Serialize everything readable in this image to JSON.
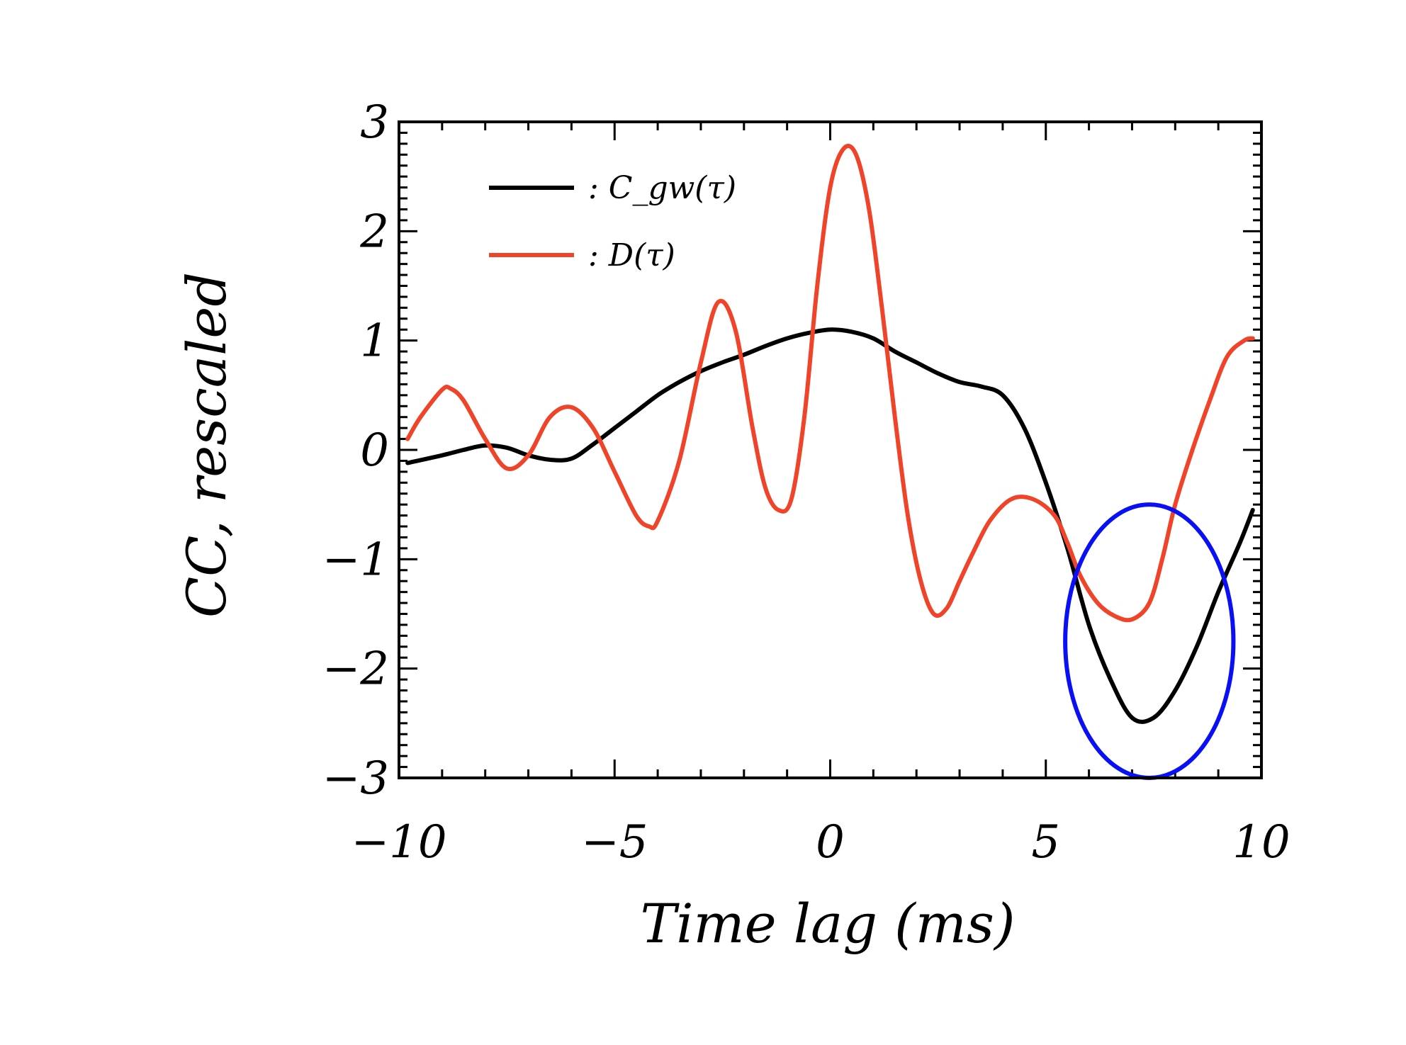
{
  "chart_data": {
    "type": "line",
    "xlabel": "Time lag (ms)",
    "ylabel": "CC, rescaled",
    "xlim": [
      -10,
      10
    ],
    "ylim": [
      -3,
      3
    ],
    "xticks": [
      -10,
      -5,
      0,
      5,
      10
    ],
    "yticks": [
      -3,
      -2,
      -1,
      0,
      1,
      2,
      3
    ],
    "xtick_labels": [
      "−10",
      "−5",
      "0",
      "5",
      "10"
    ],
    "ytick_labels": [
      "−3",
      "−2",
      "−1",
      "0",
      "1",
      "2",
      "3"
    ],
    "legend_placement": "top-left",
    "series": [
      {
        "name": ": C_gw(τ)",
        "color": "#000000",
        "x": [
          -9.8,
          -9.0,
          -8.5,
          -8.0,
          -7.5,
          -7.0,
          -6.5,
          -6.0,
          -5.5,
          -5.0,
          -4.5,
          -4.0,
          -3.5,
          -3.0,
          -2.5,
          -2.0,
          -1.5,
          -1.0,
          -0.5,
          0.0,
          0.5,
          1.0,
          1.5,
          2.0,
          2.5,
          3.0,
          3.5,
          4.0,
          4.5,
          5.0,
          5.5,
          6.0,
          6.5,
          7.0,
          7.5,
          8.0,
          8.5,
          9.0,
          9.5,
          9.8
        ],
        "y": [
          -0.12,
          -0.05,
          0.0,
          0.04,
          0.02,
          -0.05,
          -0.09,
          -0.08,
          0.05,
          0.2,
          0.35,
          0.5,
          0.62,
          0.72,
          0.8,
          0.87,
          0.95,
          1.02,
          1.07,
          1.1,
          1.08,
          1.02,
          0.9,
          0.8,
          0.7,
          0.62,
          0.58,
          0.5,
          0.2,
          -0.3,
          -0.9,
          -1.6,
          -2.1,
          -2.45,
          -2.45,
          -2.2,
          -1.8,
          -1.3,
          -0.85,
          -0.55
        ]
      },
      {
        "name": ": D(τ)",
        "color": "#F0442A",
        "x": [
          -9.8,
          -9.5,
          -9.0,
          -8.8,
          -8.5,
          -8.0,
          -7.5,
          -7.0,
          -6.5,
          -6.0,
          -5.5,
          -5.0,
          -4.5,
          -4.2,
          -4.0,
          -3.5,
          -3.0,
          -2.6,
          -2.2,
          -1.8,
          -1.5,
          -1.2,
          -0.9,
          -0.6,
          -0.3,
          0.0,
          0.3,
          0.6,
          0.9,
          1.2,
          1.5,
          1.8,
          2.1,
          2.4,
          2.7,
          3.0,
          3.3,
          3.7,
          4.2,
          4.7,
          5.2,
          5.5,
          5.8,
          6.2,
          6.6,
          7.0,
          7.4,
          7.7,
          8.0,
          8.4,
          8.8,
          9.2,
          9.6,
          9.8
        ],
        "y": [
          0.1,
          0.3,
          0.55,
          0.56,
          0.45,
          0.1,
          -0.17,
          -0.05,
          0.3,
          0.39,
          0.2,
          -0.2,
          -0.6,
          -0.7,
          -0.65,
          -0.1,
          0.8,
          1.35,
          1.1,
          0.2,
          -0.35,
          -0.55,
          -0.45,
          0.3,
          1.5,
          2.4,
          2.75,
          2.7,
          2.2,
          1.3,
          0.3,
          -0.6,
          -1.2,
          -1.5,
          -1.45,
          -1.2,
          -0.95,
          -0.65,
          -0.45,
          -0.45,
          -0.6,
          -0.85,
          -1.15,
          -1.4,
          -1.52,
          -1.55,
          -1.4,
          -1.0,
          -0.5,
          0.0,
          0.45,
          0.85,
          1.0,
          1.02
        ]
      }
    ],
    "annotation": {
      "type": "ellipse",
      "color": "#0A10F5",
      "center_x": 7.4,
      "center_y": -1.75,
      "radius_x": 1.95,
      "radius_y": 1.25
    }
  }
}
